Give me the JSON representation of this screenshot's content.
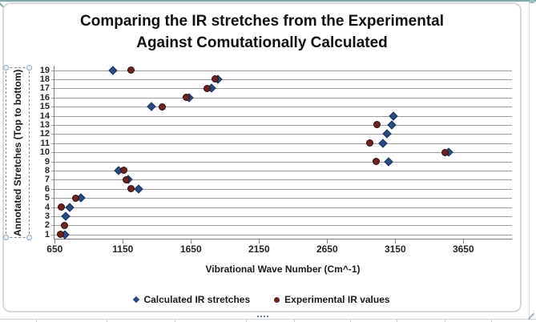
{
  "chart_title": {
    "line1": "Comparing the IR stretches from the Experimental",
    "line2": "Against Comutationally Calculated"
  },
  "axes": {
    "x_title": "Vibrational Wave Number (Cm^-1)",
    "y_title": "Annotated Stretches (Top to bottom)"
  },
  "legend": {
    "calculated": "Calculated IR stretches",
    "experimental": "Experimental IR values"
  },
  "chart_data": {
    "type": "scatter",
    "title": "Comparing the IR stretches from the Experimental Against Comutationally Calculated",
    "xlabel": "Vibrational Wave Number (Cm^-1)",
    "ylabel": "Annotated Stretches (Top to bottom)",
    "xlim": [
      650,
      4000
    ],
    "x_major_unit": 500,
    "x_ticks": [
      650,
      1150,
      1650,
      2150,
      2650,
      3150,
      3650
    ],
    "y_ticks": [
      1,
      2,
      3,
      4,
      5,
      6,
      7,
      8,
      9,
      10,
      11,
      12,
      13,
      14,
      15,
      16,
      17,
      18,
      19
    ],
    "grid": "horizontal",
    "legend_position": "bottom",
    "series": [
      {
        "name": "Calculated IR stretches",
        "marker": "diamond",
        "color": "#2b4a7d",
        "border_color": "#17375e",
        "points": [
          {
            "y": 1,
            "x": 725
          },
          {
            "y": 3,
            "x": 730
          },
          {
            "y": 4,
            "x": 760
          },
          {
            "y": 5,
            "x": 840
          },
          {
            "y": 6,
            "x": 1265
          },
          {
            "y": 7,
            "x": 1190
          },
          {
            "y": 8,
            "x": 1120
          },
          {
            "y": 9,
            "x": 3100
          },
          {
            "y": 10,
            "x": 3545
          },
          {
            "y": 11,
            "x": 3060
          },
          {
            "y": 12,
            "x": 3090
          },
          {
            "y": 13,
            "x": 3125
          },
          {
            "y": 14,
            "x": 3135
          },
          {
            "y": 15,
            "x": 1360
          },
          {
            "y": 16,
            "x": 1635
          },
          {
            "y": 17,
            "x": 1800
          },
          {
            "y": 18,
            "x": 1850
          },
          {
            "y": 19,
            "x": 1080
          }
        ]
      },
      {
        "name": "Experimental IR values",
        "marker": "circle",
        "color": "#6b2422",
        "border_color": "#2d0f0f",
        "points": [
          {
            "y": 1,
            "x": 695
          },
          {
            "y": 2,
            "x": 720
          },
          {
            "y": 4,
            "x": 700
          },
          {
            "y": 5,
            "x": 805
          },
          {
            "y": 6,
            "x": 1210
          },
          {
            "y": 7,
            "x": 1175
          },
          {
            "y": 8,
            "x": 1155
          },
          {
            "y": 9,
            "x": 3010
          },
          {
            "y": 10,
            "x": 3515
          },
          {
            "y": 11,
            "x": 2960
          },
          {
            "y": 13,
            "x": 3015
          },
          {
            "y": 15,
            "x": 1440
          },
          {
            "y": 16,
            "x": 1615
          },
          {
            "y": 17,
            "x": 1770
          },
          {
            "y": 18,
            "x": 1830
          },
          {
            "y": 19,
            "x": 1210
          }
        ]
      }
    ]
  }
}
